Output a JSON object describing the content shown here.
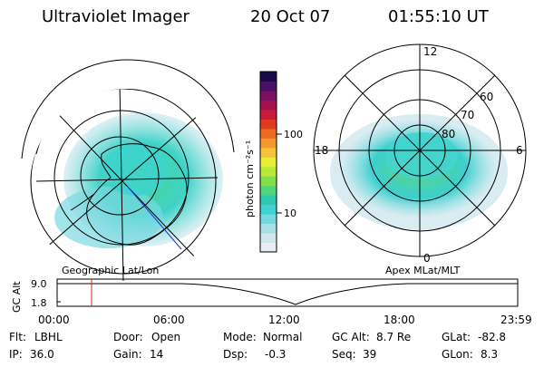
{
  "header": {
    "instrument": "Ultraviolet Imager",
    "date": "20 Oct 07",
    "time": "01:55:10 UT"
  },
  "colorbar": {
    "label": "photon cm⁻²s⁻¹",
    "ticks": [
      "100",
      "10"
    ],
    "colors": [
      "#e8eef2",
      "#cfe6ec",
      "#a9e0e6",
      "#74d8df",
      "#3fd3d6",
      "#2fc8b0",
      "#4fd67a",
      "#7fe04a",
      "#b9e83a",
      "#e8ee35",
      "#f6c23a",
      "#f49a2c",
      "#ee6a22",
      "#e23a1e",
      "#c81a3a",
      "#a3124f",
      "#7a1060",
      "#4a0f66",
      "#1a0a4a"
    ]
  },
  "geo_map": {
    "caption": "Geographic Lat/Lon"
  },
  "mag_map": {
    "caption": "Apex MLat/MLT",
    "mlt_labels": {
      "top": "12",
      "left": "18",
      "right": "6",
      "bottom": "0"
    },
    "lat_labels": [
      "60",
      "70",
      "80"
    ]
  },
  "altitude_plot": {
    "ylabel": "GC Alt",
    "yticks": [
      "9.0",
      "1.8"
    ],
    "xticks": [
      "00:00",
      "06:00",
      "12:00",
      "18:00",
      "23:59"
    ],
    "marker_color": "#e0201e"
  },
  "status": {
    "flt_label": "Flt:",
    "flt_value": "LBHL",
    "ip_label": "IP:",
    "ip_value": "36.0",
    "door_label": "Door:",
    "door_value": "Open",
    "gain_label": "Gain:",
    "gain_value": "14",
    "mode_label": "Mode:",
    "mode_value": "Normal",
    "dsp_label": "Dsp:",
    "dsp_value": "-0.3",
    "gcalt_label": "GC Alt:",
    "gcalt_value": "8.7 Re",
    "seq_label": "Seq:",
    "seq_value": "39",
    "glat_label": "GLat:",
    "glat_value": "-82.8",
    "glon_label": "GLon:",
    "glon_value": "8.3"
  }
}
